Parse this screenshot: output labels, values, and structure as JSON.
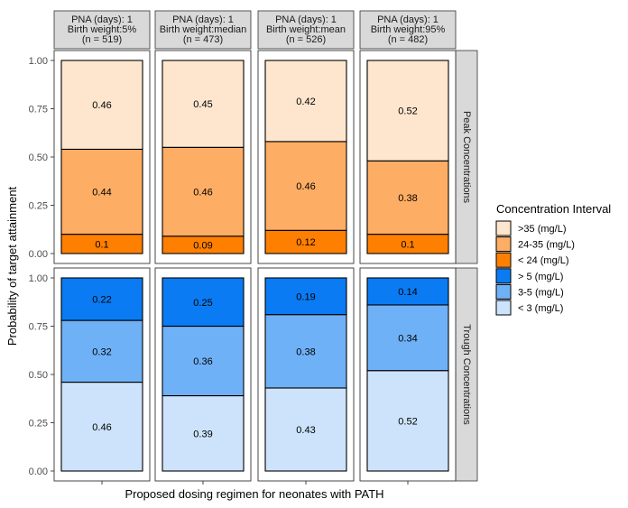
{
  "chart_data": {
    "type": "bar",
    "stacked": true,
    "xlabel": "Proposed dosing regimen for neonates with PATH",
    "ylabel": "Probability of target attainment",
    "ylim": [
      0,
      1
    ],
    "yticks": [
      "0.00",
      "0.25",
      "0.50",
      "0.75",
      "1.00"
    ],
    "grid": false,
    "legend_position": "right",
    "column_facets": [
      {
        "line1": "PNA (days): 1",
        "line2": "Birth weight:5%",
        "line3": "(n = 519)"
      },
      {
        "line1": "PNA (days): 1",
        "line2": "Birth weight:median",
        "line3": "(n = 473)"
      },
      {
        "line1": "PNA (days): 1",
        "line2": "Birth weight:mean",
        "line3": "(n = 526)"
      },
      {
        "line1": "PNA (days): 1",
        "line2": "Birth weight:95%",
        "line3": "(n = 482)"
      }
    ],
    "row_facets": [
      {
        "label": "Peak Concentrations",
        "series": [
          {
            "name": "< 24 (mg/L)",
            "color": "#ff7f00",
            "values": [
              0.1,
              0.09,
              0.12,
              0.1
            ]
          },
          {
            "name": "24-35 (mg/L)",
            "color": "#fdad64",
            "values": [
              0.44,
              0.46,
              0.46,
              0.38
            ]
          },
          {
            "name": ">35 (mg/L)",
            "color": "#fee6ce",
            "values": [
              0.46,
              0.45,
              0.42,
              0.52
            ]
          }
        ]
      },
      {
        "label": "Trough Concentrations",
        "series": [
          {
            "name": "< 3 (mg/L)",
            "color": "#cde3fb",
            "values": [
              0.46,
              0.39,
              0.43,
              0.52
            ]
          },
          {
            "name": "3-5 (mg/L)",
            "color": "#6fb1f6",
            "values": [
              0.32,
              0.36,
              0.38,
              0.34
            ]
          },
          {
            "name": "> 5 (mg/L)",
            "color": "#0a7bf2",
            "values": [
              0.22,
              0.25,
              0.19,
              0.14
            ]
          }
        ]
      }
    ],
    "legend": {
      "title": "Concentration Interval",
      "items": [
        {
          "label": ">35 (mg/L)",
          "color": "#fee6ce"
        },
        {
          "label": "24-35 (mg/L)",
          "color": "#fdad64"
        },
        {
          "label": "< 24 (mg/L)",
          "color": "#ff7f00"
        },
        {
          "label": "> 5 (mg/L)",
          "color": "#0a7bf2"
        },
        {
          "label": "3-5 (mg/L)",
          "color": "#6fb1f6"
        },
        {
          "label": "< 3 (mg/L)",
          "color": "#cde3fb"
        }
      ]
    }
  }
}
